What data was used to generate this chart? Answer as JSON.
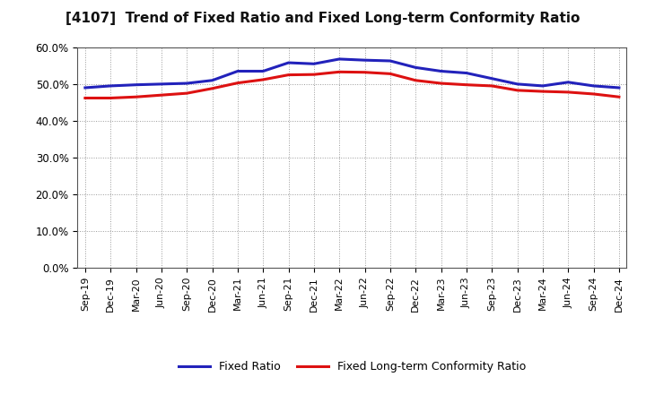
{
  "title": "[4107]  Trend of Fixed Ratio and Fixed Long-term Conformity Ratio",
  "x_labels": [
    "Sep-19",
    "Dec-19",
    "Mar-20",
    "Jun-20",
    "Sep-20",
    "Dec-20",
    "Mar-21",
    "Jun-21",
    "Sep-21",
    "Dec-21",
    "Mar-22",
    "Jun-22",
    "Sep-22",
    "Dec-22",
    "Mar-23",
    "Jun-23",
    "Sep-23",
    "Dec-23",
    "Mar-24",
    "Jun-24",
    "Sep-24",
    "Dec-24"
  ],
  "fixed_ratio": [
    49.0,
    49.5,
    49.8,
    50.0,
    50.2,
    51.0,
    53.5,
    53.5,
    55.8,
    55.5,
    56.8,
    56.5,
    56.3,
    54.5,
    53.5,
    53.0,
    51.5,
    50.0,
    49.5,
    50.5,
    49.5,
    49.0
  ],
  "fixed_lt_ratio": [
    46.2,
    46.2,
    46.5,
    47.0,
    47.5,
    48.8,
    50.3,
    51.2,
    52.5,
    52.6,
    53.3,
    53.2,
    52.8,
    51.0,
    50.2,
    49.8,
    49.5,
    48.3,
    48.0,
    47.8,
    47.3,
    46.5
  ],
  "fixed_ratio_color": "#2222bb",
  "fixed_lt_ratio_color": "#dd1111",
  "ylim": [
    0,
    60
  ],
  "yticks": [
    0,
    10,
    20,
    30,
    40,
    50,
    60
  ],
  "ytick_labels": [
    "0.0%",
    "10.0%",
    "20.0%",
    "30.0%",
    "40.0%",
    "50.0%",
    "60.0%"
  ],
  "background_color": "#ffffff",
  "plot_bg_color": "#ffffff",
  "grid_color": "#999999",
  "legend_fixed_ratio": "Fixed Ratio",
  "legend_fixed_lt_ratio": "Fixed Long-term Conformity Ratio",
  "line_width": 2.2
}
